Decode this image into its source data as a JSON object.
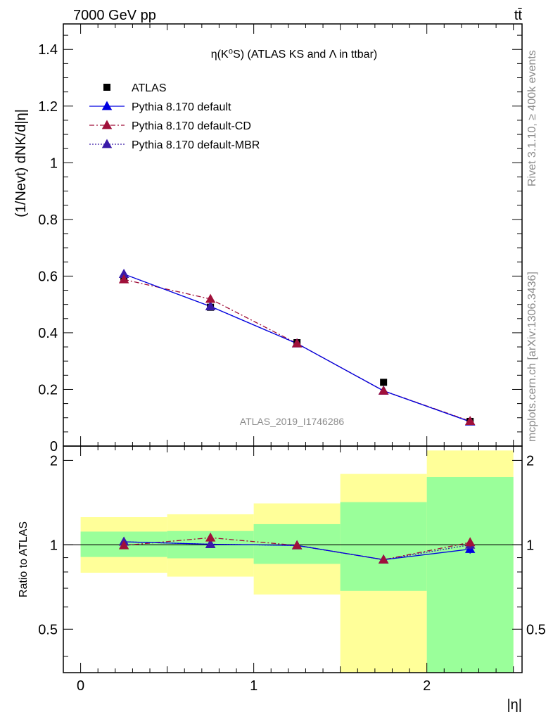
{
  "header": {
    "left_label": "7000 GeV pp",
    "right_label": "tt̄"
  },
  "side_labels": {
    "rivet": "Rivet 3.1.10, ≥ 400k events",
    "mcplots": "mcplots.cern.ch [arXiv:1306.3436]"
  },
  "chart_data": [
    {
      "type": "line",
      "title": "η(K⁰S) (ATLAS KS and Λ in ttbar)",
      "xlabel": "|η|",
      "ylabel": "(1/Nevt) dNK/d|η|",
      "watermark": "ATLAS_2019_I1746286",
      "xlim": [
        -0.1,
        2.55
      ],
      "ylim": [
        0,
        1.49
      ],
      "yticks": [
        0.2,
        0.4,
        0.6,
        0.8,
        1,
        1.2,
        1.4
      ],
      "ytick_labels": [
        "0.2",
        "0.4",
        "0.6",
        "0.8",
        "1",
        "1.2",
        "1.4"
      ],
      "cut_label": "0",
      "legend_position": "top-left",
      "x": [
        0.25,
        0.75,
        1.25,
        1.75,
        2.25
      ],
      "series": [
        {
          "name": "ATLAS",
          "values": [
            0.59,
            0.49,
            0.365,
            0.225,
            0.087
          ],
          "color": "#000000",
          "marker": "square",
          "line": "none"
        },
        {
          "name": "Pythia 8.170 default",
          "values": [
            0.607,
            0.493,
            0.362,
            0.195,
            0.086
          ],
          "color": "#0000e0",
          "marker": "triangle",
          "line": "solid"
        },
        {
          "name": "Pythia 8.170 default-CD",
          "values": [
            0.588,
            0.519,
            0.362,
            0.195,
            0.088
          ],
          "color": "#a0103a",
          "marker": "triangle",
          "line": "dashdot"
        },
        {
          "name": "Pythia 8.170 default-MBR",
          "values": [
            0.607,
            0.493,
            0.362,
            0.195,
            0.087
          ],
          "color": "#3a1aa8",
          "marker": "triangle",
          "line": "dotted"
        }
      ]
    },
    {
      "type": "line",
      "title": "",
      "xlabel": "|η|",
      "ylabel": "Ratio to ATLAS",
      "xlim": [
        -0.1,
        2.55
      ],
      "ylim": [
        0.35,
        2.25
      ],
      "yticks": [
        0.5,
        1,
        2
      ],
      "ytick_labels": [
        "0.5",
        "1",
        "2"
      ],
      "xticks": [
        0,
        1,
        2
      ],
      "xtick_labels": [
        "0",
        "1",
        "2"
      ],
      "reference_line": 1,
      "x": [
        0.25,
        0.75,
        1.25,
        1.75,
        2.25
      ],
      "bands": [
        {
          "x0": 0.0,
          "x1": 0.5,
          "inner": [
            0.905,
            1.115
          ],
          "outer": [
            0.795,
            1.255
          ],
          "lo_extends": false,
          "hi_extends": false
        },
        {
          "x0": 0.5,
          "x1": 1.0,
          "inner": [
            0.895,
            1.12
          ],
          "outer": [
            0.77,
            1.285
          ],
          "lo_extends": false,
          "hi_extends": false
        },
        {
          "x0": 1.0,
          "x1": 1.5,
          "inner": [
            0.855,
            1.185
          ],
          "outer": [
            0.665,
            1.405
          ],
          "lo_extends": false,
          "hi_extends": false
        },
        {
          "x0": 1.5,
          "x1": 2.0,
          "inner": [
            0.685,
            1.42
          ],
          "outer": [
            0.35,
            1.79
          ],
          "lo_extends": true,
          "hi_extends": false
        },
        {
          "x0": 2.0,
          "x1": 2.5,
          "inner": [
            0.35,
            1.745
          ],
          "outer": [
            0.35,
            2.17
          ],
          "lo_extends": true,
          "hi_extends": false
        }
      ],
      "band_colors": {
        "inner": "#9aff9a",
        "outer": "#ffff99"
      },
      "series": [
        {
          "name": "Pythia 8.170 default",
          "values": [
            1.025,
            1.005,
            0.995,
            0.885,
            0.965
          ],
          "errors": [
            0,
            0,
            0,
            0.02,
            0.035
          ],
          "color": "#0000e0",
          "line": "solid"
        },
        {
          "name": "Pythia 8.170 default-CD",
          "values": [
            0.995,
            1.06,
            0.995,
            0.885,
            1.02
          ],
          "errors": [
            0,
            0,
            0,
            0.02,
            0.04
          ],
          "color": "#a0103a",
          "line": "dashdot"
        },
        {
          "name": "Pythia 8.170 default-MBR",
          "values": [
            1.025,
            1.005,
            0.995,
            0.885,
            1.0
          ],
          "errors": [
            0,
            0,
            0,
            0.02,
            0.035
          ],
          "color": "#3a1aa8",
          "line": "dotted"
        }
      ]
    }
  ]
}
